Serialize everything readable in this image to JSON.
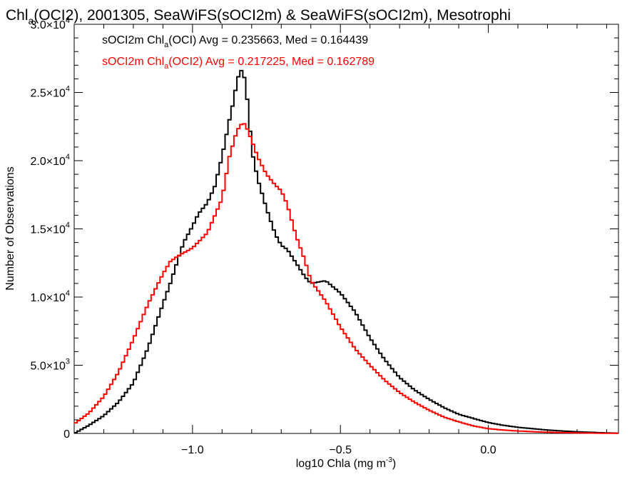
{
  "chart_data": {
    "type": "line",
    "title": {
      "pre": "Chl",
      "sub": "a",
      "post": "(OCI2), 2001305, SeaWiFS(sOCI2m) & SeaWiFS(sOCI2m), Mesotrophi"
    },
    "xlabel": {
      "pre": "log10 Chla (mg m",
      "sup": "-3",
      "post": ")"
    },
    "ylabel": "Number of Observations",
    "xlim": [
      -1.4,
      0.44
    ],
    "ylim": [
      0,
      30000
    ],
    "x_ticks": [
      {
        "value": -1.0,
        "label": "−1.0"
      },
      {
        "value": -0.5,
        "label": "−0.5"
      },
      {
        "value": 0.0,
        "label": "0.0"
      }
    ],
    "y_ticks": [
      {
        "value": 0,
        "label": "0",
        "exp": ""
      },
      {
        "value": 5000,
        "label": "5.0×10",
        "exp": "3"
      },
      {
        "value": 10000,
        "label": "1.0×10",
        "exp": "4"
      },
      {
        "value": 15000,
        "label": "1.5×10",
        "exp": "4"
      },
      {
        "value": 20000,
        "label": "2.0×10",
        "exp": "4"
      },
      {
        "value": 25000,
        "label": "2.5×10",
        "exp": "4"
      },
      {
        "value": 30000,
        "label": "3.0×10",
        "exp": "4"
      }
    ],
    "grid": false,
    "legend_position": "top-left",
    "series": [
      {
        "label_pre": "sOCI2m Chl",
        "label_sub": "a",
        "label_post": "(OCI) Avg = 0.235663, Med = 0.164439",
        "color": "#000000",
        "x": [
          -1.4,
          -1.35,
          -1.3,
          -1.25,
          -1.2,
          -1.15,
          -1.1,
          -1.075,
          -1.05,
          -1.03,
          -1.0,
          -0.98,
          -0.95,
          -0.925,
          -0.9,
          -0.875,
          -0.86,
          -0.85,
          -0.84,
          -0.83,
          -0.82,
          -0.81,
          -0.8,
          -0.78,
          -0.75,
          -0.72,
          -0.7,
          -0.68,
          -0.65,
          -0.62,
          -0.6,
          -0.55,
          -0.5,
          -0.45,
          -0.4,
          -0.35,
          -0.3,
          -0.25,
          -0.2,
          -0.15,
          -0.1,
          -0.05,
          0.0,
          0.05,
          0.1,
          0.15,
          0.2,
          0.25,
          0.3,
          0.35,
          0.4,
          0.44
        ],
        "y": [
          0,
          600,
          1300,
          2300,
          3700,
          6300,
          9500,
          11000,
          12700,
          14000,
          15200,
          16100,
          16900,
          18100,
          20300,
          23000,
          24500,
          25800,
          26500,
          26700,
          25500,
          23500,
          20800,
          18700,
          16500,
          14600,
          13800,
          13500,
          12500,
          11500,
          11000,
          11200,
          10300,
          8900,
          7000,
          5400,
          4100,
          3200,
          2500,
          1900,
          1400,
          1100,
          800,
          600,
          450,
          350,
          250,
          180,
          120,
          80,
          40,
          20
        ]
      },
      {
        "label_pre": "sOCI2m Chl",
        "label_sub": "a",
        "label_post": "(OCI2) Avg = 0.217225, Med = 0.162789",
        "color": "#ff0000",
        "x": [
          -1.4,
          -1.35,
          -1.3,
          -1.25,
          -1.2,
          -1.15,
          -1.1,
          -1.075,
          -1.05,
          -1.0,
          -0.95,
          -0.9,
          -0.875,
          -0.85,
          -0.83,
          -0.82,
          -0.8,
          -0.78,
          -0.75,
          -0.72,
          -0.7,
          -0.68,
          -0.65,
          -0.62,
          -0.6,
          -0.55,
          -0.5,
          -0.45,
          -0.4,
          -0.35,
          -0.3,
          -0.25,
          -0.2,
          -0.15,
          -0.1,
          -0.05,
          0.0,
          0.05,
          0.1,
          0.15,
          0.2,
          0.25,
          0.3,
          0.35,
          0.4,
          0.44
        ],
        "y": [
          700,
          1500,
          2700,
          4500,
          6900,
          9500,
          11700,
          12600,
          13000,
          13600,
          14700,
          17200,
          20300,
          22200,
          22800,
          22600,
          21500,
          20300,
          19000,
          18200,
          17800,
          16800,
          14500,
          12700,
          11200,
          9700,
          7800,
          6200,
          5000,
          3900,
          3000,
          2300,
          1700,
          1200,
          850,
          550,
          350,
          250,
          180,
          130,
          90,
          60,
          40,
          25,
          15,
          10
        ]
      }
    ]
  }
}
